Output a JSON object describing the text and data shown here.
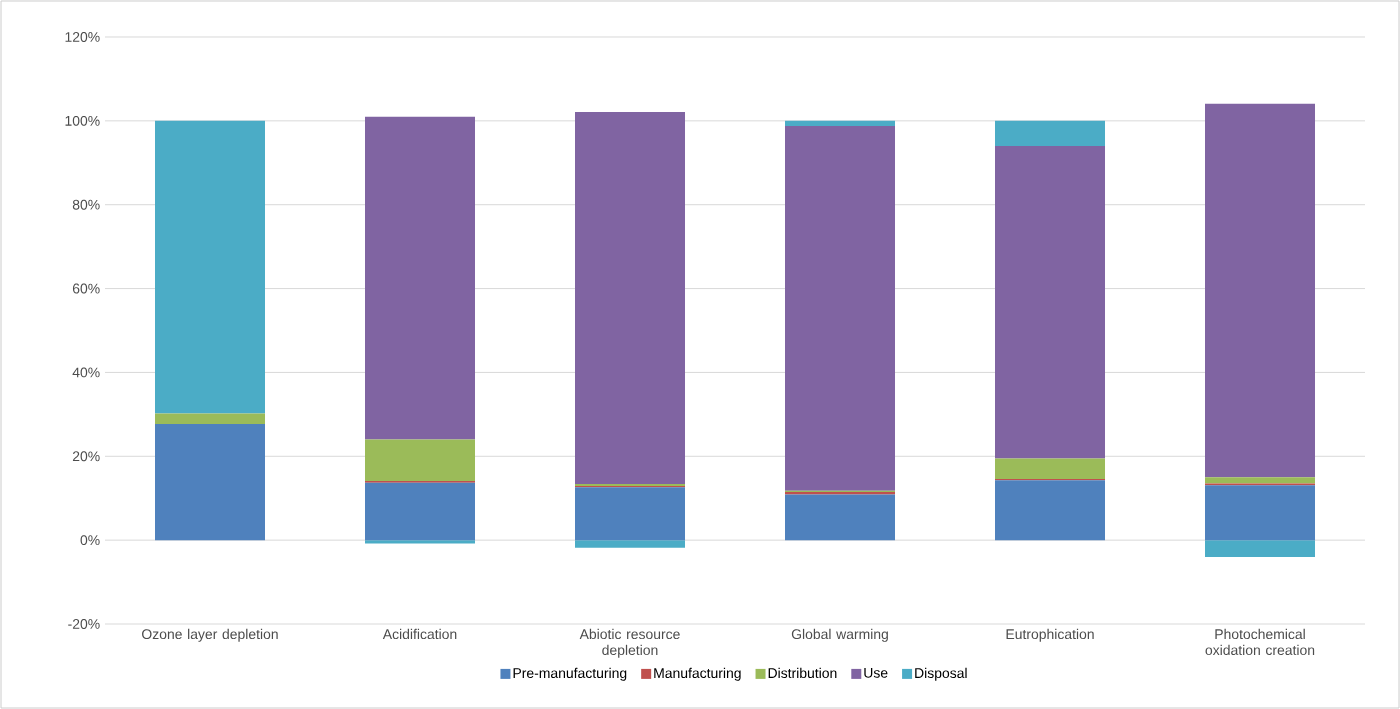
{
  "chart_data": {
    "type": "bar",
    "stacked": true,
    "categories": [
      "Ozone layer depletion",
      "Acidification",
      "Abiotic resource depletion",
      "Global warming",
      "Eutrophication",
      "Photochemical oxidation creation"
    ],
    "series": [
      {
        "name": "Pre-manufacturing",
        "color": "#4f81bd",
        "values": [
          27.7,
          13.7,
          12.6,
          10.9,
          14.3,
          13.1
        ]
      },
      {
        "name": "Manufacturing",
        "color": "#c0504d",
        "values": [
          0,
          0.4,
          0.3,
          0.6,
          0.3,
          0.4
        ]
      },
      {
        "name": "Distribution",
        "color": "#9bbb59",
        "values": [
          2.5,
          9.9,
          0.5,
          0.3,
          4.9,
          1.5
        ]
      },
      {
        "name": "Use",
        "color": "#8064a2",
        "values": [
          0,
          77,
          88.7,
          87,
          74.5,
          89.1
        ]
      },
      {
        "name": "Disposal",
        "color": "#4bacc6",
        "values": [
          69.8,
          -0.8,
          -1.8,
          1.2,
          6.0,
          -4.0
        ]
      }
    ],
    "ylim": [
      -20,
      120
    ],
    "yticks": [
      {
        "value": -20,
        "label": "-20%"
      },
      {
        "value": 0,
        "label": "0%"
      },
      {
        "value": 20,
        "label": "20%"
      },
      {
        "value": 40,
        "label": "40%"
      },
      {
        "value": 60,
        "label": "60%"
      },
      {
        "value": 80,
        "label": "80%"
      },
      {
        "value": 100,
        "label": "100%"
      },
      {
        "value": 120,
        "label": "120%"
      }
    ],
    "grid": "y",
    "legend": "bottom"
  }
}
